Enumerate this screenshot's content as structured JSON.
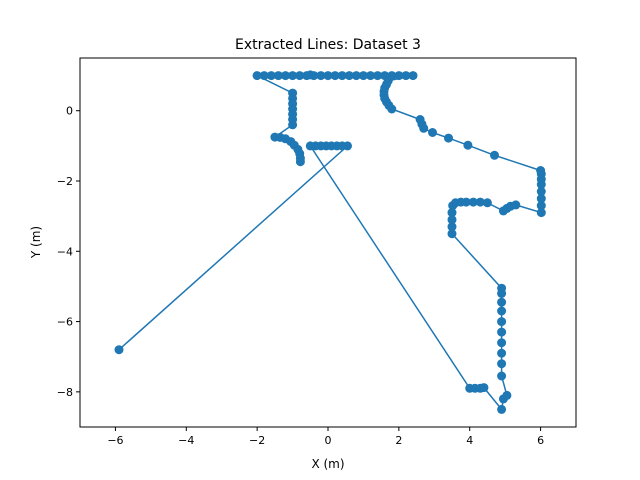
{
  "chart_data": {
    "type": "line",
    "title": "Extracted Lines: Dataset 3",
    "xlabel": "X (m)",
    "ylabel": "Y (m)",
    "xlim": [
      -7,
      7
    ],
    "ylim": [
      -9,
      1.5
    ],
    "xticks": [
      -6,
      -4,
      -2,
      0,
      2,
      4,
      6
    ],
    "yticks": [
      -8,
      -6,
      -4,
      -2,
      0
    ],
    "tick_labels_x": [
      "−6",
      "−4",
      "−2",
      "0",
      "2",
      "4",
      "6"
    ],
    "tick_labels_y": [
      "−8",
      "−6",
      "−4",
      "−2",
      "0"
    ],
    "grid": false,
    "legend": "none",
    "series_color": "#1f77b4",
    "series": [
      {
        "points": [
          [
            -5.9,
            -6.8
          ],
          [
            0.55,
            -1.0
          ],
          [
            0.4,
            -1.0
          ],
          [
            0.25,
            -1.0
          ],
          [
            0.1,
            -1.0
          ],
          [
            -0.05,
            -1.0
          ],
          [
            -0.2,
            -1.0
          ],
          [
            -0.35,
            -1.0
          ],
          [
            -0.5,
            -1.0
          ],
          [
            4.0,
            -7.9
          ],
          [
            4.15,
            -7.9
          ],
          [
            4.3,
            -7.9
          ],
          [
            4.4,
            -7.88
          ],
          [
            4.9,
            -8.5
          ],
          [
            4.95,
            -8.2
          ],
          [
            5.05,
            -8.1
          ],
          [
            4.9,
            -7.55
          ],
          [
            4.9,
            -7.2
          ],
          [
            4.9,
            -6.9
          ],
          [
            4.9,
            -6.6
          ],
          [
            4.9,
            -6.3
          ],
          [
            4.9,
            -6.0
          ],
          [
            4.9,
            -5.7
          ],
          [
            4.9,
            -5.45
          ],
          [
            4.9,
            -5.2
          ],
          [
            4.9,
            -5.05
          ],
          [
            3.5,
            -3.5
          ],
          [
            3.5,
            -3.3
          ],
          [
            3.5,
            -3.1
          ],
          [
            3.5,
            -2.9
          ],
          [
            3.52,
            -2.7
          ],
          [
            3.6,
            -2.62
          ],
          [
            3.75,
            -2.6
          ],
          [
            3.9,
            -2.6
          ],
          [
            4.1,
            -2.6
          ],
          [
            4.3,
            -2.6
          ],
          [
            4.5,
            -2.62
          ],
          [
            4.95,
            -2.85
          ],
          [
            5.05,
            -2.78
          ],
          [
            5.15,
            -2.72
          ],
          [
            5.3,
            -2.68
          ],
          [
            6.02,
            -2.9
          ],
          [
            6.02,
            -2.7
          ],
          [
            6.02,
            -2.5
          ],
          [
            6.02,
            -2.3
          ],
          [
            6.02,
            -2.1
          ],
          [
            6.02,
            -1.95
          ],
          [
            6.02,
            -1.8
          ],
          [
            6.0,
            -1.7
          ],
          [
            4.7,
            -1.27
          ],
          [
            3.95,
            -0.98
          ],
          [
            3.4,
            -0.78
          ],
          [
            2.95,
            -0.62
          ],
          [
            2.7,
            -0.5
          ],
          [
            2.65,
            -0.38
          ],
          [
            2.6,
            -0.25
          ],
          [
            1.8,
            0.05
          ],
          [
            1.72,
            0.15
          ],
          [
            1.65,
            0.25
          ],
          [
            1.6,
            0.35
          ],
          [
            1.58,
            0.45
          ],
          [
            1.58,
            0.55
          ],
          [
            1.6,
            0.65
          ],
          [
            1.65,
            0.75
          ],
          [
            1.7,
            0.85
          ],
          [
            2.4,
            1.0
          ],
          [
            2.2,
            1.0
          ],
          [
            2.0,
            1.0
          ],
          [
            1.8,
            1.0
          ],
          [
            1.6,
            1.0
          ],
          [
            1.4,
            1.0
          ],
          [
            1.2,
            1.0
          ],
          [
            1.0,
            1.0
          ],
          [
            0.8,
            1.0
          ],
          [
            0.6,
            1.0
          ],
          [
            0.4,
            1.0
          ],
          [
            0.2,
            1.0
          ],
          [
            0.0,
            1.0
          ],
          [
            -0.2,
            1.0
          ],
          [
            -0.4,
            1.0
          ],
          [
            -0.5,
            1.02
          ],
          [
            -0.6,
            1.0
          ],
          [
            -0.8,
            1.0
          ],
          [
            -1.0,
            1.0
          ],
          [
            -1.2,
            1.0
          ],
          [
            -1.4,
            1.0
          ],
          [
            -1.6,
            1.0
          ],
          [
            -1.8,
            1.0
          ],
          [
            -2.0,
            1.0
          ],
          [
            -1.0,
            0.5
          ],
          [
            -1.0,
            0.35
          ],
          [
            -1.0,
            0.2
          ],
          [
            -1.0,
            0.05
          ],
          [
            -1.0,
            -0.1
          ],
          [
            -1.0,
            -0.25
          ],
          [
            -1.0,
            -0.4
          ],
          [
            -1.5,
            -0.75
          ],
          [
            -1.35,
            -0.76
          ],
          [
            -1.2,
            -0.8
          ],
          [
            -1.05,
            -0.88
          ],
          [
            -0.95,
            -0.98
          ],
          [
            -0.85,
            -1.1
          ],
          [
            -0.8,
            -1.22
          ],
          [
            -0.78,
            -1.35
          ],
          [
            -0.78,
            -1.45
          ]
        ]
      }
    ]
  }
}
